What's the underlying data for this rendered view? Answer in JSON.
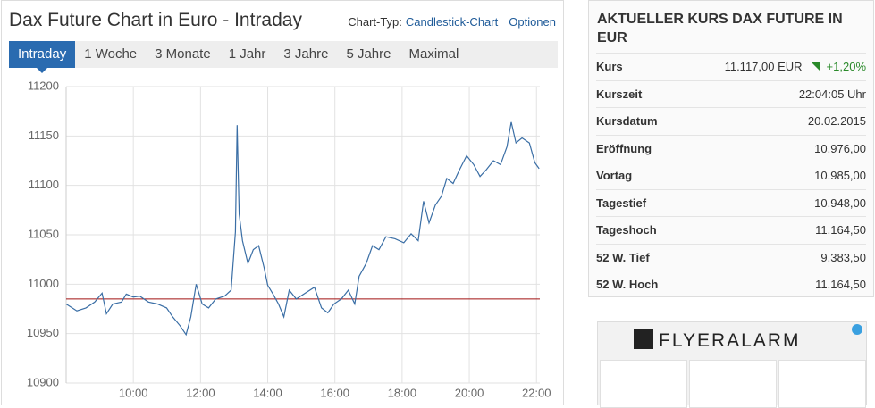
{
  "header": {
    "title": "Dax Future Chart in Euro - Intraday",
    "chart_type_label": "Chart-Typ:",
    "chart_type": "Candlestick-Chart",
    "options": "Optionen"
  },
  "tabs": [
    "Intraday",
    "1 Woche",
    "3 Monate",
    "1 Jahr",
    "3 Jahre",
    "5 Jahre",
    "Maximal"
  ],
  "chart_data": {
    "type": "line",
    "color": "#3a6ea5",
    "x": [
      8.0,
      8.32,
      8.59,
      8.85,
      9.07,
      9.2,
      9.39,
      9.65,
      9.79,
      10.0,
      10.19,
      10.45,
      10.72,
      10.99,
      11.17,
      11.39,
      11.57,
      11.71,
      11.87,
      12.05,
      12.24,
      12.45,
      12.72,
      12.91,
      13.04,
      13.09,
      13.15,
      13.25,
      13.41,
      13.57,
      13.73,
      13.89,
      14.0,
      14.16,
      14.32,
      14.48,
      14.64,
      14.85,
      15.12,
      15.39,
      15.6,
      15.79,
      15.97,
      16.19,
      16.4,
      16.59,
      16.72,
      16.93,
      17.12,
      17.31,
      17.52,
      17.79,
      18.05,
      18.27,
      18.48,
      18.64,
      18.8,
      18.99,
      19.17,
      19.33,
      19.52,
      19.71,
      19.92,
      20.13,
      20.32,
      20.51,
      20.72,
      20.93,
      21.12,
      21.25,
      21.39,
      21.57,
      21.79,
      21.95,
      22.08
    ],
    "values": [
      10980,
      10973,
      10976,
      10982,
      10991,
      10970,
      10980,
      10982,
      10990,
      10987,
      10988,
      10982,
      10980,
      10976,
      10967,
      10958,
      10949,
      10967,
      11000,
      10980,
      10976,
      10985,
      10988,
      10994,
      11053,
      11161,
      11071,
      11044,
      11021,
      11035,
      11039,
      11017,
      10999,
      10990,
      10980,
      10967,
      10994,
      10985,
      10991,
      10997,
      10976,
      10971,
      10980,
      10985,
      10994,
      10980,
      11008,
      11021,
      11039,
      11035,
      11048,
      11046,
      11042,
      11051,
      11044,
      11084,
      11062,
      11080,
      11089,
      11107,
      11102,
      11116,
      11130,
      11121,
      11109,
      11116,
      11125,
      11121,
      11139,
      11164,
      11143,
      11148,
      11143,
      11123,
      11117
    ],
    "reference_line": {
      "value": 10985,
      "color": "#a01010"
    },
    "xlim": [
      8,
      22.1
    ],
    "ylim": [
      10900,
      11200
    ],
    "xticks": [
      {
        "value": 10,
        "label": "10:00"
      },
      {
        "value": 12,
        "label": "12:00"
      },
      {
        "value": 14,
        "label": "14:00"
      },
      {
        "value": 16,
        "label": "16:00"
      },
      {
        "value": 18,
        "label": "18:00"
      },
      {
        "value": 20,
        "label": "20:00"
      },
      {
        "value": 22,
        "label": "22:00"
      }
    ],
    "yticks": [
      10900,
      10950,
      11000,
      11050,
      11100,
      11150,
      11200
    ],
    "grid": true
  },
  "panel": {
    "title": "AKTUELLER KURS DAX FUTURE IN EUR",
    "change": "+1,20%",
    "rows": [
      {
        "label": "Kurs",
        "value": "11.117,00 EUR"
      },
      {
        "label": "Kurszeit",
        "value": "22:04:05 Uhr"
      },
      {
        "label": "Kursdatum",
        "value": "20.02.2015"
      },
      {
        "label": "Eröffnung",
        "value": "10.976,00"
      },
      {
        "label": "Vortag",
        "value": "10.985,00"
      },
      {
        "label": "Tagestief",
        "value": "10.948,00"
      },
      {
        "label": "Tageshoch",
        "value": "11.164,50"
      },
      {
        "label": "52 W. Tief",
        "value": "9.383,50"
      },
      {
        "label": "52 W. Hoch",
        "value": "11.164,50"
      }
    ]
  },
  "ad": {
    "brand": "FLYERALARM"
  }
}
